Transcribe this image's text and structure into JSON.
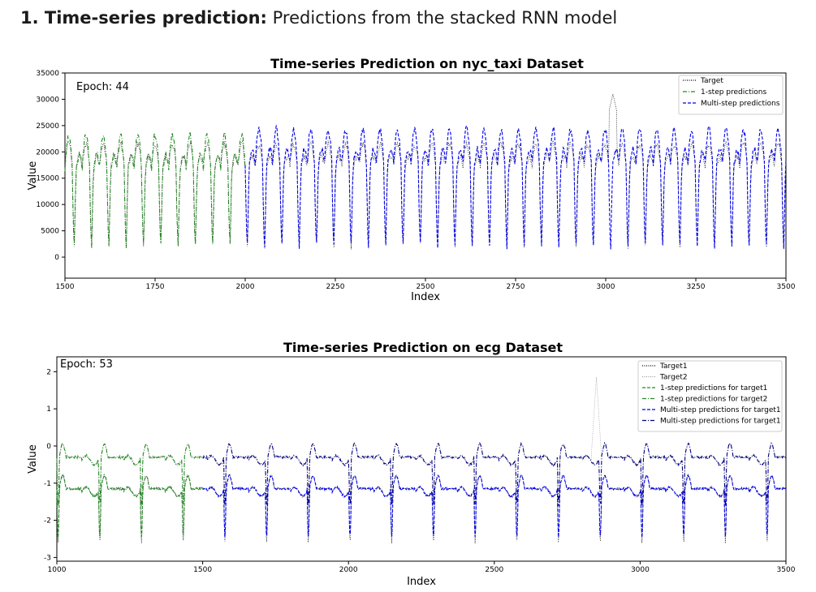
{
  "heading": {
    "number": "1.",
    "bold": "Time-series prediction:",
    "rest": "Predictions from the stacked RNN model"
  },
  "chart_data": [
    {
      "type": "line",
      "title": "Time-series Prediction on nyc_taxi Dataset",
      "xlabel": "Index",
      "ylabel": "Value",
      "annotation": "Epoch: 44",
      "xlim": [
        1500,
        3500
      ],
      "ylim": [
        -4000,
        35000
      ],
      "xticks": [
        1500,
        1750,
        2000,
        2250,
        2500,
        2750,
        3000,
        3250,
        3500
      ],
      "yticks": [
        0,
        5000,
        10000,
        15000,
        20000,
        25000,
        30000,
        35000
      ],
      "legend_position": "top-right",
      "grid": false,
      "series": [
        {
          "name": "Target",
          "color": "#000000",
          "style": "dotted",
          "x_range": [
            1500,
            3500
          ],
          "period": 48,
          "high": 22000,
          "low": 2000,
          "mean": 17500,
          "peak": 31000,
          "peak_x": 3020
        },
        {
          "name": "1-step predictions",
          "color": "#228B22",
          "style": "dashdot",
          "x_range": [
            1500,
            2000
          ],
          "period": 48,
          "high": 24000,
          "low": 2000,
          "mean": 17000
        },
        {
          "name": "Multi-step predictions",
          "color": "#0000EE",
          "style": "dashed",
          "x_range": [
            2000,
            3500
          ],
          "period": 48,
          "high": 25000,
          "low": 2000,
          "mean": 18000
        }
      ]
    },
    {
      "type": "line",
      "title": "Time-series Prediction on ecg Dataset",
      "xlabel": "Index",
      "ylabel": "Value",
      "annotation": "Epoch: 53",
      "xlim": [
        1000,
        3500
      ],
      "ylim": [
        -3.1,
        2.4
      ],
      "xticks": [
        1000,
        1500,
        2000,
        2500,
        3000,
        3500
      ],
      "yticks": [
        -3,
        -2,
        -1,
        0,
        1,
        2
      ],
      "legend_position": "top-right",
      "grid": false,
      "series": [
        {
          "name": "Target1",
          "color": "#000000",
          "style": "dotted",
          "x_range": [
            1000,
            3500
          ],
          "period": 143,
          "baseline": -1.15,
          "spike_min": -2.6
        },
        {
          "name": "Target2",
          "color": "#999999",
          "style": "dotted",
          "x_range": [
            1000,
            3500
          ],
          "period": 143,
          "baseline": -0.3,
          "spike_min": -2.5,
          "peak": 1.85,
          "peak_x": 2850
        },
        {
          "name": "1-step predictions for target1",
          "color": "#228B22",
          "style": "dashed",
          "x_range": [
            1000,
            1500
          ],
          "period": 143,
          "baseline": -1.15
        },
        {
          "name": "1-step predictions for target2",
          "color": "#228B22",
          "style": "dashdot",
          "x_range": [
            1000,
            1500
          ],
          "period": 143,
          "baseline": -0.3
        },
        {
          "name": "Multi-step predictions for target1",
          "color": "#0000EE",
          "style": "dashed",
          "x_range": [
            1500,
            3500
          ],
          "period": 143,
          "baseline": -1.15
        },
        {
          "name": "Multi-step predictions for target1",
          "color": "#000080",
          "style": "dashdot",
          "x_range": [
            1500,
            3500
          ],
          "period": 143,
          "baseline": -0.3
        }
      ]
    }
  ]
}
